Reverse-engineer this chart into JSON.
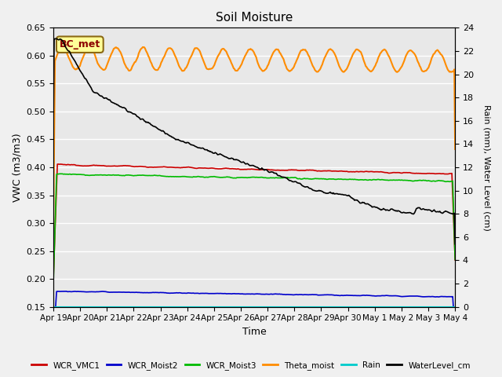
{
  "title": "Soil Moisture",
  "xlabel": "Time",
  "ylabel_left": "VWC (m3/m3)",
  "ylabel_right": "Rain (mm), Water Level (cm)",
  "ylim_left": [
    0.15,
    0.65
  ],
  "ylim_right": [
    0,
    24
  ],
  "yticks_left": [
    0.15,
    0.2,
    0.25,
    0.3,
    0.35,
    0.4,
    0.45,
    0.5,
    0.55,
    0.6,
    0.65
  ],
  "yticks_right": [
    0,
    2,
    4,
    6,
    8,
    10,
    12,
    14,
    16,
    18,
    20,
    22,
    24
  ],
  "bg_color": "#e8e8e8",
  "fig_color": "#f0f0f0",
  "annotation_label": "BC_met",
  "legend_entries": [
    "WCR_VMC1",
    "WCR_Moist2",
    "WCR_Moist3",
    "Theta_moist",
    "Rain",
    "WaterLevel_cm"
  ],
  "legend_colors": [
    "#cc0000",
    "#0000cc",
    "#00bb00",
    "#ff8c00",
    "#00cccc",
    "#000000"
  ],
  "line_colors": {
    "WCR_VMC1": "#cc0000",
    "WCR_Moist2": "#0000cc",
    "WCR_Moist3": "#00bb00",
    "Theta_moist": "#ff8c00",
    "Rain": "#00cccc",
    "WaterLevel_cm": "#000000"
  },
  "n_points": 500,
  "days": 15
}
